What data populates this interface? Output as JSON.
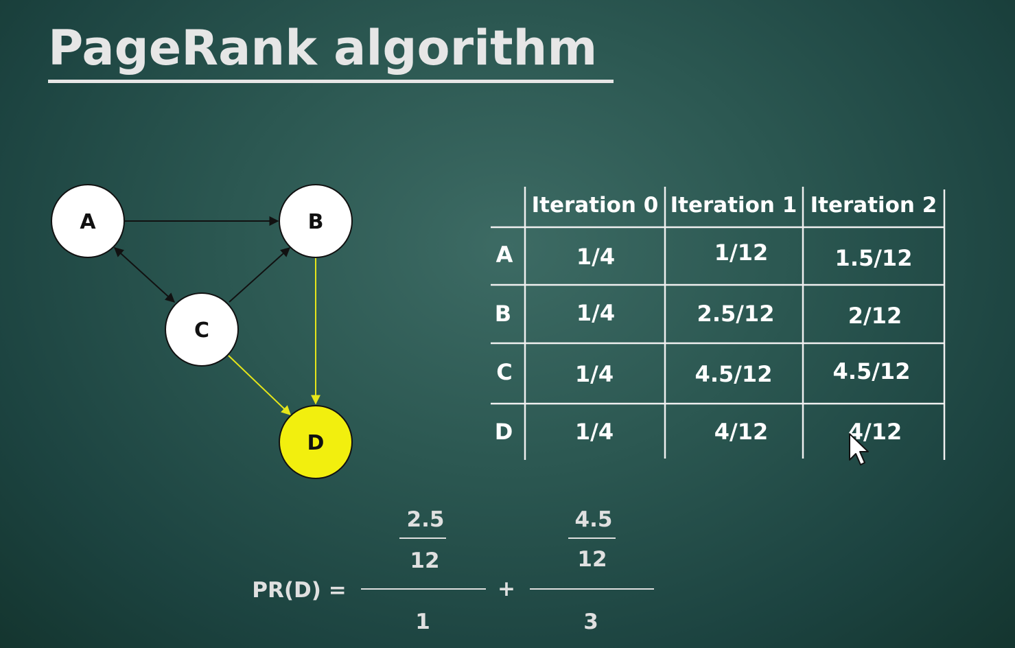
{
  "title": "PageRank algorithm",
  "graph": {
    "nodes": [
      {
        "id": "A",
        "label": "A",
        "highlight": false
      },
      {
        "id": "B",
        "label": "B",
        "highlight": false
      },
      {
        "id": "C",
        "label": "C",
        "highlight": false
      },
      {
        "id": "D",
        "label": "D",
        "highlight": true
      }
    ],
    "edges": [
      {
        "from": "A",
        "to": "B",
        "bidirectional": false,
        "color": "#111111"
      },
      {
        "from": "A",
        "to": "C",
        "bidirectional": true,
        "color": "#111111"
      },
      {
        "from": "C",
        "to": "B",
        "bidirectional": false,
        "color": "#111111"
      },
      {
        "from": "B",
        "to": "D",
        "bidirectional": false,
        "color": "#e6e61a"
      },
      {
        "from": "C",
        "to": "D",
        "bidirectional": false,
        "color": "#e6e61a"
      }
    ],
    "node_fill": "#ffffff",
    "highlight_fill": "#f2ef0e"
  },
  "table": {
    "headers": [
      "Iteration 0",
      "Iteration 1",
      "Iteration 2"
    ],
    "rows": [
      {
        "label": "A",
        "values": [
          "1/4",
          "1/12",
          "1.5/12"
        ]
      },
      {
        "label": "B",
        "values": [
          "1/4",
          "2.5/12",
          "2/12"
        ]
      },
      {
        "label": "C",
        "values": [
          "1/4",
          "4.5/12",
          "4.5/12"
        ]
      },
      {
        "label": "D",
        "values": [
          "1/4",
          "4/12",
          "4/12"
        ]
      }
    ]
  },
  "formula": {
    "lhs": "PR(D) =",
    "term1": {
      "inner_num": "2.5",
      "inner_den": "12",
      "den": "1"
    },
    "op": "+",
    "term2": {
      "inner_num": "4.5",
      "inner_den": "12",
      "den": "3"
    }
  }
}
